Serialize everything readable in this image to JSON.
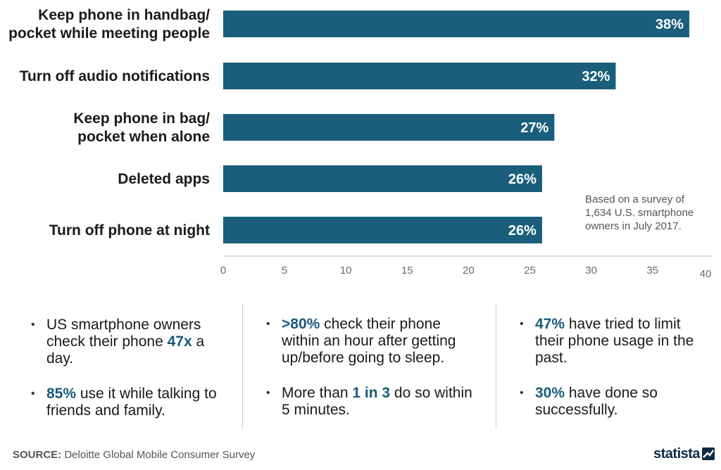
{
  "chart_data": {
    "type": "bar",
    "orientation": "horizontal",
    "categories": [
      [
        "Keep phone in handbag/",
        "pocket while meeting people"
      ],
      [
        "Turn off audio notifications"
      ],
      [
        "Keep phone in bag/",
        "pocket when alone"
      ],
      [
        "Deleted apps"
      ],
      [
        "Turn off phone at night"
      ]
    ],
    "values": [
      38,
      32,
      27,
      26,
      26
    ],
    "value_labels": [
      "38%",
      "32%",
      "27%",
      "26%",
      "26%"
    ],
    "x_ticks": [
      0,
      5,
      10,
      15,
      20,
      25,
      30,
      35,
      40
    ],
    "xlim": [
      0,
      40
    ],
    "bar_color": "#1a5e7c",
    "grid": false
  },
  "note": [
    "Based on a survey of",
    "1,634 U.S. smartphone",
    "owners in July 2017."
  ],
  "facts": {
    "col1": [
      {
        "pre": "US smartphone owners check their phone ",
        "hl": "47x",
        "post": " a day."
      },
      {
        "pre": "",
        "hl": "85%",
        "post": " use it while talking to friends and family."
      }
    ],
    "col2": [
      {
        "pre": "",
        "hl": ">80%",
        "post": " check their phone within an hour after getting up/before going to sleep."
      },
      {
        "pre": "More than ",
        "hl": "1 in 3",
        "post": " do so within 5 minutes."
      }
    ],
    "col3": [
      {
        "pre": "",
        "hl": "47%",
        "post": " have tried to limit their phone usage in the past."
      },
      {
        "pre": "",
        "hl": "30%",
        "post": " have done so successfully."
      }
    ]
  },
  "footer": {
    "source_label": "SOURCE:",
    "source_text": "Deloitte Global Mobile Consumer Survey"
  },
  "logo": {
    "text": "statista",
    "icon": "statista-logo-icon"
  },
  "colors": {
    "highlight": "#1a5a7a",
    "bar": "#1a5e7c"
  }
}
